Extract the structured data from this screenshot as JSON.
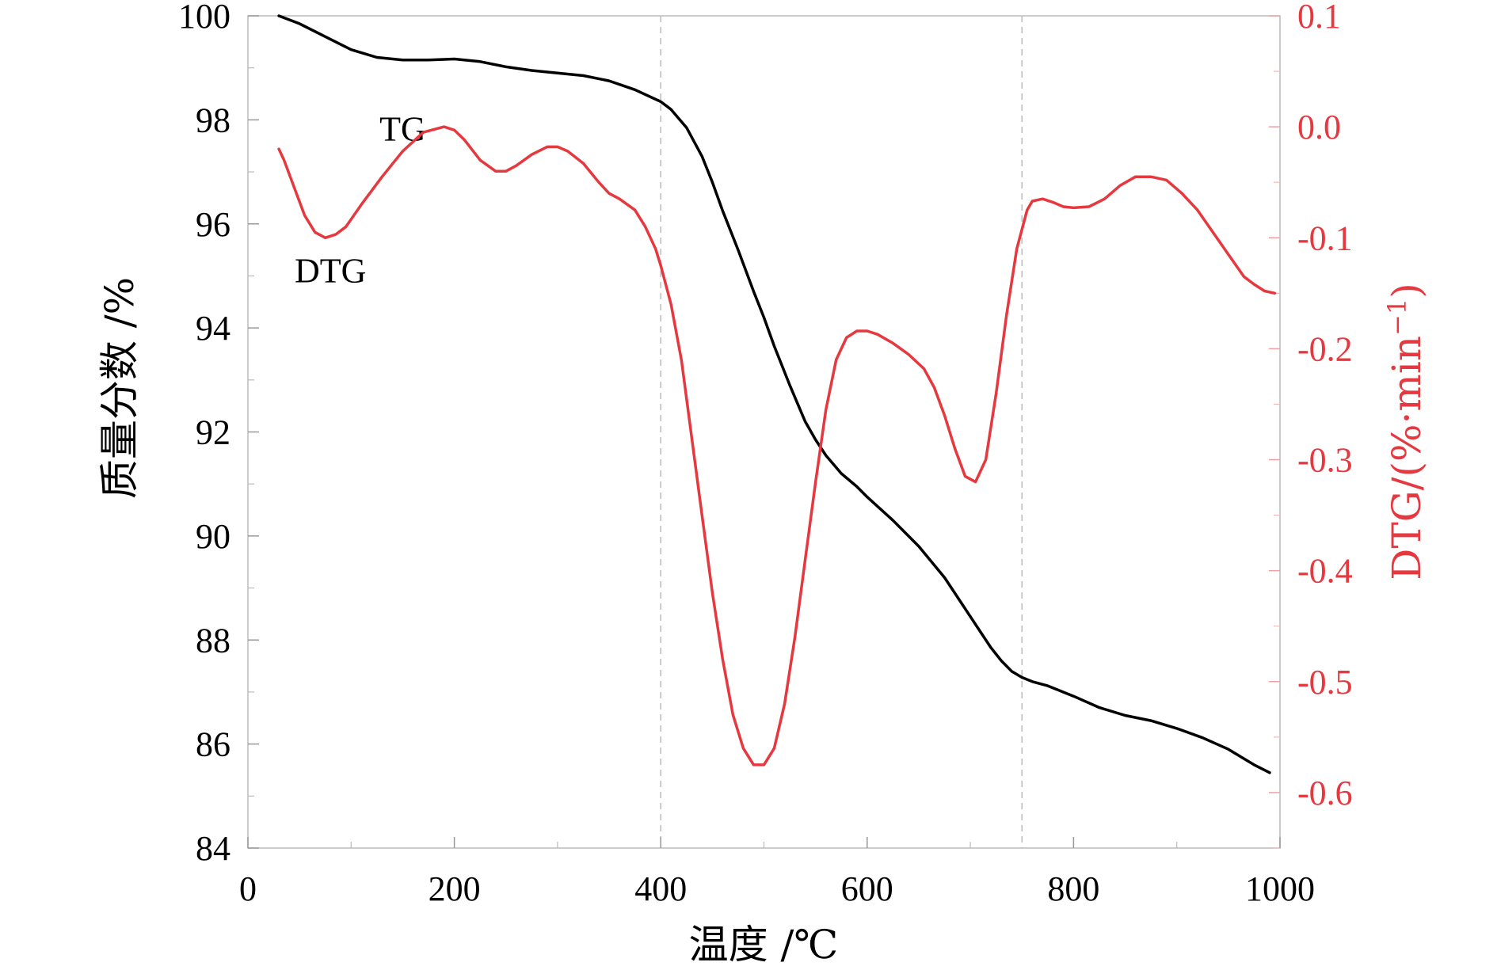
{
  "chart_data": {
    "type": "line",
    "xlabel": "温度 /℃",
    "ylabel_left": "质量分数 /%",
    "ylabel_right": "DTG/(%·min",
    "ylabel_right_superscript": "−1",
    "ylabel_right_close": ")",
    "xlim": [
      0,
      1000
    ],
    "ylim_left": [
      84,
      100
    ],
    "ylim_right": [
      -0.65,
      0.1
    ],
    "x_ticks": [
      "0",
      "200",
      "400",
      "600",
      "800",
      "1000"
    ],
    "y_left_ticks": [
      "84",
      "86",
      "88",
      "90",
      "92",
      "94",
      "96",
      "98",
      "100"
    ],
    "y_right_ticks": [
      "-0.6",
      "-0.5",
      "-0.4",
      "-0.3",
      "-0.2",
      "-0.1",
      "0.0",
      "0.1"
    ],
    "reference_lines_x": [
      400,
      750
    ],
    "colors": {
      "tg": "#000000",
      "dtg": "#e5383f",
      "right_axis": "#e5383f",
      "grid": "#bbbbbb"
    },
    "series": [
      {
        "name": "TG",
        "axis": "left",
        "label_at": [
          150,
          97.6
        ],
        "x": [
          30,
          50,
          75,
          100,
          125,
          150,
          175,
          200,
          225,
          250,
          275,
          300,
          325,
          350,
          375,
          400,
          410,
          425,
          440,
          450,
          460,
          475,
          490,
          500,
          510,
          525,
          540,
          550,
          560,
          575,
          590,
          600,
          625,
          650,
          675,
          690,
          700,
          710,
          720,
          730,
          740,
          750,
          760,
          775,
          800,
          825,
          850,
          875,
          900,
          925,
          950,
          975,
          990
        ],
        "values": [
          100.0,
          99.85,
          99.6,
          99.35,
          99.2,
          99.15,
          99.15,
          99.17,
          99.12,
          99.02,
          98.95,
          98.9,
          98.85,
          98.75,
          98.58,
          98.35,
          98.2,
          97.85,
          97.3,
          96.8,
          96.25,
          95.5,
          94.7,
          94.2,
          93.65,
          92.9,
          92.2,
          91.85,
          91.55,
          91.2,
          90.95,
          90.75,
          90.3,
          89.8,
          89.2,
          88.75,
          88.45,
          88.15,
          87.85,
          87.6,
          87.4,
          87.28,
          87.2,
          87.12,
          86.92,
          86.7,
          86.55,
          86.45,
          86.3,
          86.12,
          85.9,
          85.6,
          85.45
        ]
      },
      {
        "name": "DTG",
        "axis": "right",
        "label_at": [
          80,
          -0.14
        ],
        "x": [
          30,
          35,
          45,
          55,
          65,
          75,
          85,
          95,
          110,
          130,
          150,
          170,
          190,
          200,
          210,
          225,
          240,
          250,
          260,
          275,
          290,
          300,
          310,
          325,
          340,
          350,
          360,
          375,
          385,
          395,
          400,
          410,
          420,
          430,
          440,
          450,
          460,
          470,
          480,
          490,
          500,
          510,
          520,
          530,
          540,
          550,
          560,
          570,
          580,
          590,
          600,
          610,
          625,
          640,
          655,
          665,
          675,
          685,
          695,
          705,
          715,
          725,
          735,
          745,
          755,
          760,
          770,
          780,
          790,
          800,
          815,
          830,
          845,
          860,
          875,
          890,
          905,
          920,
          935,
          950,
          965,
          975,
          985,
          995
        ],
        "values": [
          -0.02,
          -0.03,
          -0.055,
          -0.08,
          -0.095,
          -0.1,
          -0.097,
          -0.09,
          -0.07,
          -0.045,
          -0.022,
          -0.005,
          0.0,
          -0.003,
          -0.012,
          -0.03,
          -0.04,
          -0.04,
          -0.035,
          -0.025,
          -0.018,
          -0.018,
          -0.022,
          -0.033,
          -0.05,
          -0.06,
          -0.065,
          -0.075,
          -0.09,
          -0.11,
          -0.125,
          -0.16,
          -0.21,
          -0.28,
          -0.35,
          -0.42,
          -0.48,
          -0.53,
          -0.56,
          -0.575,
          -0.575,
          -0.56,
          -0.52,
          -0.46,
          -0.39,
          -0.32,
          -0.255,
          -0.21,
          -0.19,
          -0.184,
          -0.184,
          -0.187,
          -0.195,
          -0.205,
          -0.218,
          -0.235,
          -0.26,
          -0.29,
          -0.315,
          -0.32,
          -0.3,
          -0.24,
          -0.17,
          -0.11,
          -0.075,
          -0.067,
          -0.065,
          -0.068,
          -0.072,
          -0.073,
          -0.072,
          -0.065,
          -0.053,
          -0.045,
          -0.045,
          -0.048,
          -0.06,
          -0.075,
          -0.095,
          -0.115,
          -0.135,
          -0.142,
          -0.148,
          -0.15
        ]
      }
    ]
  }
}
